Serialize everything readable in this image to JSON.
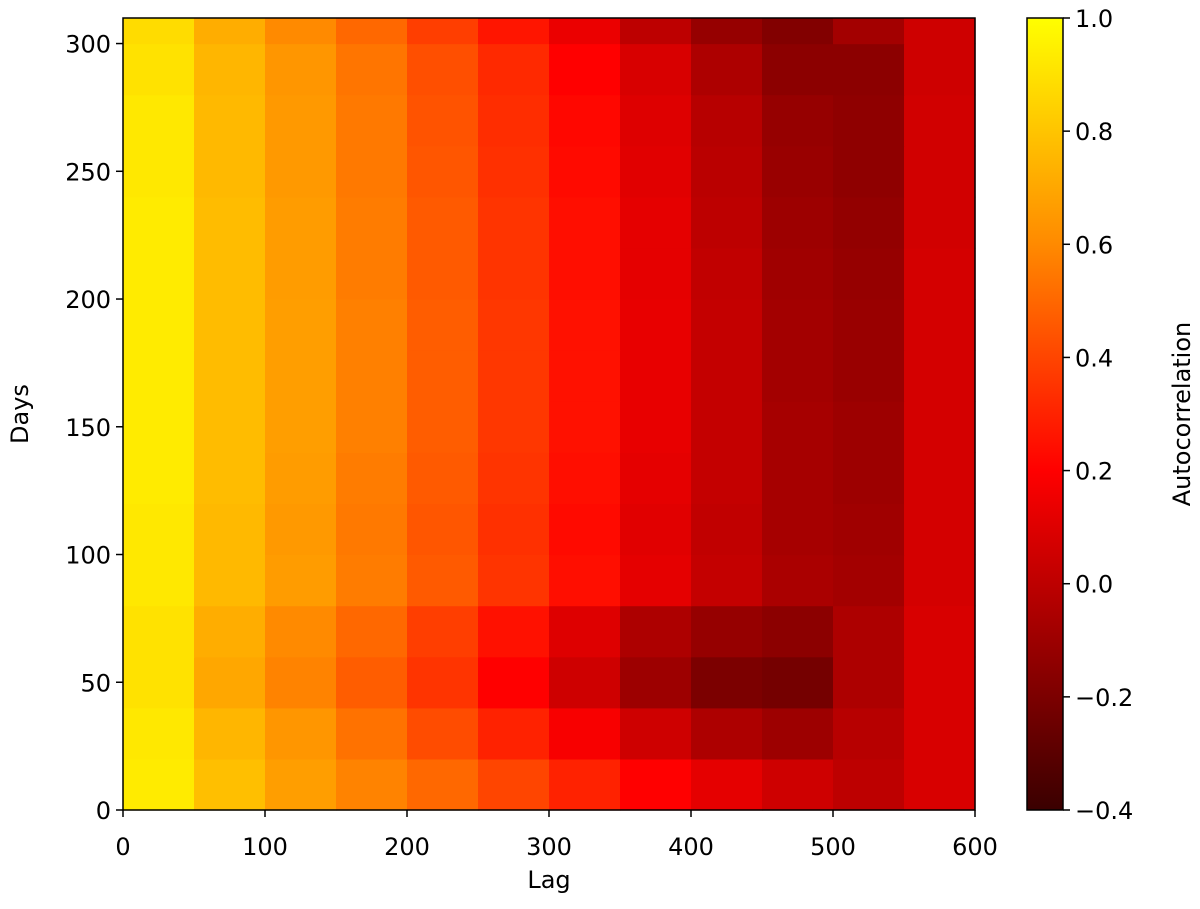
{
  "chart_data": {
    "type": "heatmap",
    "xlabel": "Lag",
    "ylabel": "Days",
    "colorbar_label": "Autocorrelation",
    "xlim": [
      0,
      600
    ],
    "ylim": [
      0,
      310
    ],
    "xticks": [
      0,
      100,
      200,
      300,
      400,
      500,
      600
    ],
    "yticks": [
      0,
      50,
      100,
      150,
      200,
      250,
      300
    ],
    "xbins": [
      0,
      50,
      100,
      150,
      200,
      250,
      300,
      350,
      400,
      450,
      500,
      550,
      600
    ],
    "ybins": [
      0,
      20,
      40,
      60,
      80,
      100,
      120,
      140,
      160,
      180,
      200,
      220,
      240,
      260,
      280,
      300,
      310
    ],
    "clim": [
      -0.4,
      1.0
    ],
    "cticks": [
      {
        "value": -0.4,
        "label": "−0.4"
      },
      {
        "value": -0.2,
        "label": "−0.2"
      },
      {
        "value": 0,
        "label": "0.0"
      },
      0.2,
      0.4,
      0.6,
      0.8,
      {
        "value": 1,
        "label": "1.0"
      }
    ],
    "colormap": [
      {
        "value": -0.4,
        "color": "#3a0000"
      },
      {
        "value": 0.2,
        "color": "#ff0000"
      },
      {
        "value": 0.6,
        "color": "#ff8a00"
      },
      {
        "value": 1.0,
        "color": "#ffff00"
      }
    ],
    "values": [
      [
        0.93,
        0.78,
        0.67,
        0.58,
        0.5,
        0.4,
        0.3,
        0.2,
        0.12,
        0.05,
        0.0,
        0.08
      ],
      [
        0.92,
        0.75,
        0.64,
        0.53,
        0.42,
        0.3,
        0.18,
        0.05,
        -0.05,
        -0.1,
        -0.02,
        0.08
      ],
      [
        0.9,
        0.7,
        0.58,
        0.47,
        0.35,
        0.2,
        0.05,
        -0.1,
        -0.2,
        -0.22,
        -0.05,
        0.08
      ],
      [
        0.9,
        0.72,
        0.6,
        0.5,
        0.38,
        0.25,
        0.1,
        -0.05,
        -0.12,
        -0.15,
        -0.05,
        0.08
      ],
      [
        0.92,
        0.76,
        0.66,
        0.56,
        0.46,
        0.35,
        0.24,
        0.12,
        0.02,
        -0.06,
        -0.08,
        0.07
      ],
      [
        0.92,
        0.76,
        0.65,
        0.55,
        0.45,
        0.34,
        0.23,
        0.11,
        0.01,
        -0.07,
        -0.09,
        0.07
      ],
      [
        0.93,
        0.77,
        0.66,
        0.56,
        0.46,
        0.35,
        0.24,
        0.12,
        0.02,
        -0.07,
        -0.1,
        0.07
      ],
      [
        0.93,
        0.77,
        0.67,
        0.57,
        0.47,
        0.36,
        0.25,
        0.13,
        0.02,
        -0.07,
        -0.1,
        0.07
      ],
      [
        0.93,
        0.77,
        0.67,
        0.57,
        0.47,
        0.36,
        0.25,
        0.13,
        0.02,
        -0.08,
        -0.11,
        0.07
      ],
      [
        0.93,
        0.77,
        0.67,
        0.57,
        0.47,
        0.36,
        0.25,
        0.13,
        0.02,
        -0.08,
        -0.11,
        0.07
      ],
      [
        0.93,
        0.77,
        0.66,
        0.56,
        0.46,
        0.35,
        0.24,
        0.12,
        0.01,
        -0.09,
        -0.12,
        0.07
      ],
      [
        0.93,
        0.77,
        0.66,
        0.56,
        0.46,
        0.35,
        0.24,
        0.12,
        0.0,
        -0.1,
        -0.13,
        0.06
      ],
      [
        0.92,
        0.76,
        0.65,
        0.55,
        0.45,
        0.34,
        0.23,
        0.11,
        -0.01,
        -0.11,
        -0.14,
        0.06
      ],
      [
        0.92,
        0.76,
        0.65,
        0.55,
        0.44,
        0.33,
        0.22,
        0.1,
        -0.02,
        -0.12,
        -0.14,
        0.06
      ],
      [
        0.9,
        0.75,
        0.64,
        0.54,
        0.43,
        0.32,
        0.2,
        0.08,
        -0.05,
        -0.15,
        -0.15,
        0.05
      ],
      [
        0.88,
        0.72,
        0.6,
        0.5,
        0.38,
        0.26,
        0.14,
        0.0,
        -0.12,
        -0.18,
        -0.08,
        0.05
      ]
    ]
  }
}
